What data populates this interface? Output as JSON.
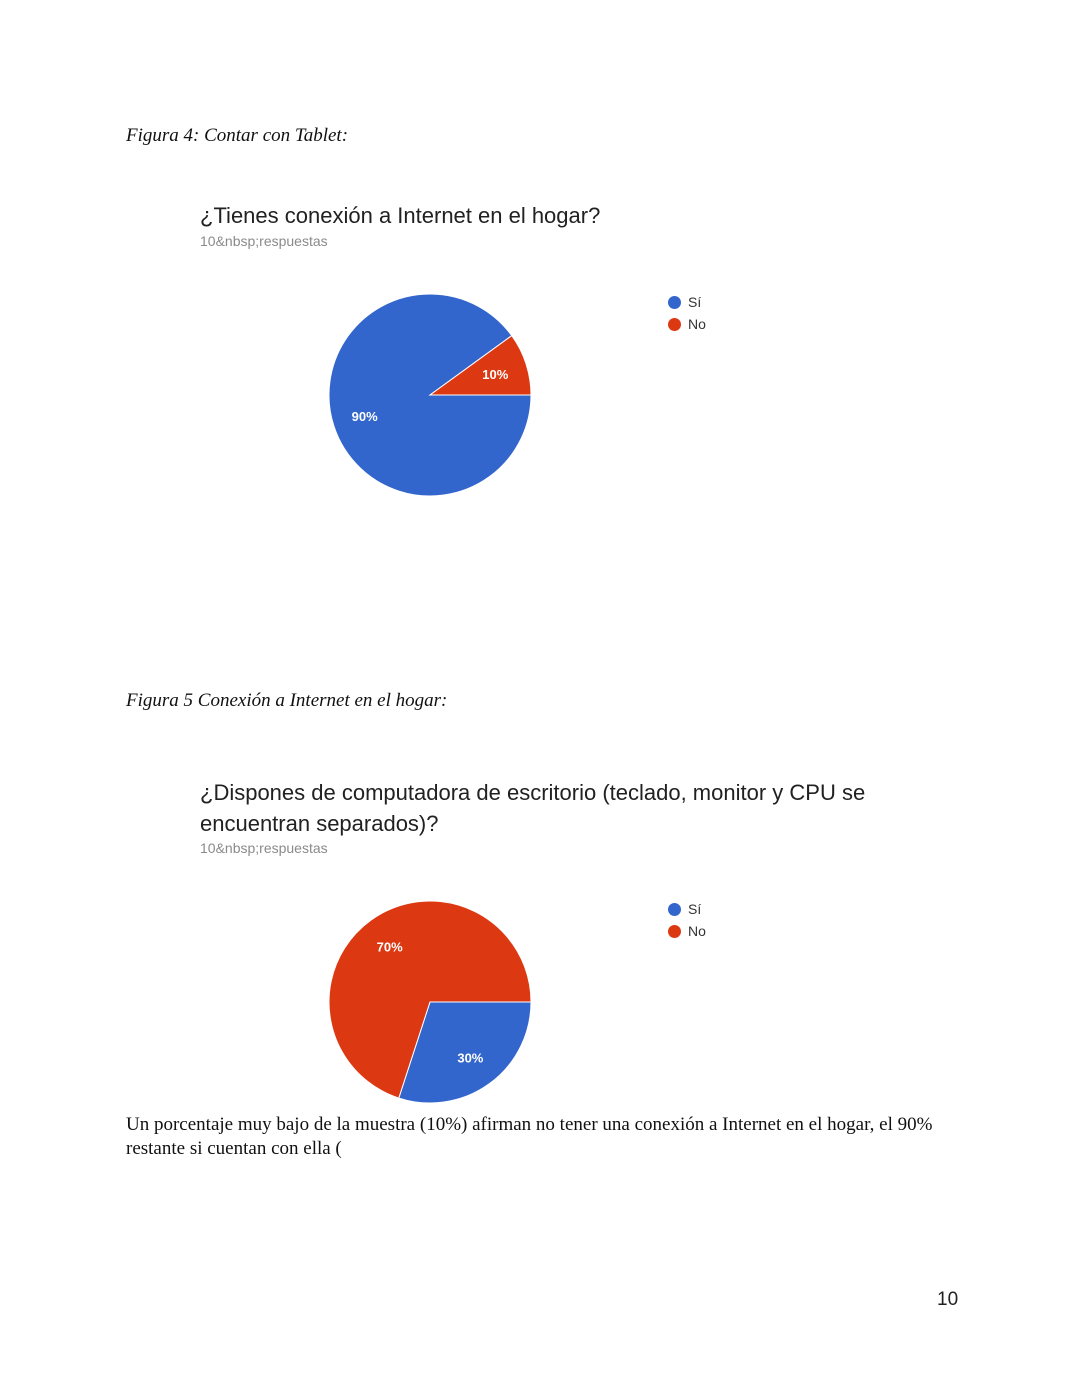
{
  "page": {
    "caption_1": "Figura 4: Contar con Tablet:",
    "caption_2": "Figura 5 Conexión a Internet en el hogar:",
    "paragraph": "Un porcentaje muy bajo de la muestra (10%) afirman no tener una conexión a Internet en el hogar, el 90% restante si cuentan con ella (",
    "page_number": "10"
  },
  "colors": {
    "si": "#3366cc",
    "no": "#dc3912"
  },
  "chart_data": [
    {
      "type": "pie",
      "title": "¿Tienes conexión a Internet en el hogar?",
      "subtitle": "10&nbsp;respuestas",
      "categories": [
        "Sí",
        "No"
      ],
      "values": [
        90,
        10
      ],
      "labels": [
        "90%",
        "10%"
      ],
      "legend_position": "right"
    },
    {
      "type": "pie",
      "title": "¿Dispones de computadora de escritorio (teclado, monitor y CPU se encuentran separados)?",
      "subtitle": "10&nbsp;respuestas",
      "categories": [
        "Sí",
        "No"
      ],
      "values": [
        30,
        70
      ],
      "labels": [
        "30%",
        "70%"
      ],
      "legend_position": "right"
    }
  ]
}
